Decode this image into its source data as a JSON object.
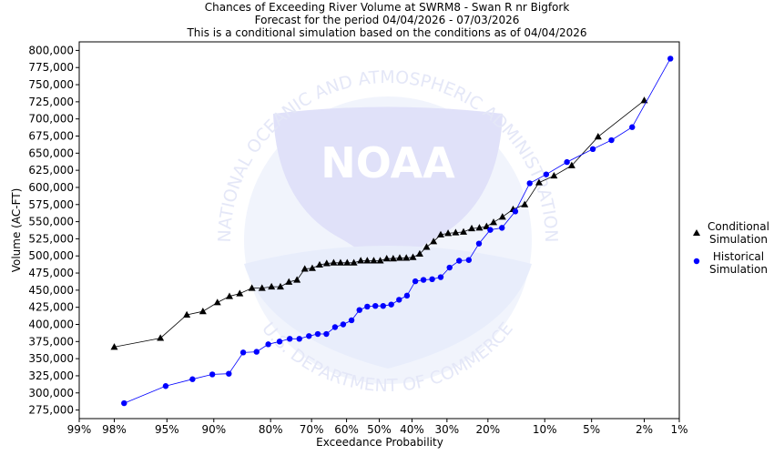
{
  "chart_data": {
    "type": "line",
    "title_lines": [
      "Chances of Exceeding River Volume at SWRM8 - Swan R nr Bigfork",
      "Forecast for the period 04/04/2026 - 07/03/2026",
      "This is a conditional simulation based on the conditions as of 04/04/2026"
    ],
    "xlabel": "Exceedance Probability",
    "ylabel": "Volume (AC-FT)",
    "x_scale": "normal-probability",
    "x_reversed": true,
    "xlim": [
      0.99,
      0.01
    ],
    "ylim": [
      262500,
      812500
    ],
    "x_ticks": [
      {
        "value": 0.99,
        "label": "99%"
      },
      {
        "value": 0.98,
        "label": "98%"
      },
      {
        "value": 0.95,
        "label": "95%"
      },
      {
        "value": 0.9,
        "label": "90%"
      },
      {
        "value": 0.8,
        "label": "80%"
      },
      {
        "value": 0.7,
        "label": "70%"
      },
      {
        "value": 0.6,
        "label": "60%"
      },
      {
        "value": 0.5,
        "label": "50%"
      },
      {
        "value": 0.4,
        "label": "40%"
      },
      {
        "value": 0.3,
        "label": "30%"
      },
      {
        "value": 0.2,
        "label": "20%"
      },
      {
        "value": 0.1,
        "label": "10%"
      },
      {
        "value": 0.05,
        "label": "5%"
      },
      {
        "value": 0.02,
        "label": "2%"
      },
      {
        "value": 0.01,
        "label": "1%"
      }
    ],
    "y_ticks": [
      {
        "value": 800000,
        "label": "800,000"
      },
      {
        "value": 775000,
        "label": "775,000"
      },
      {
        "value": 750000,
        "label": "750,000"
      },
      {
        "value": 725000,
        "label": "725,000"
      },
      {
        "value": 700000,
        "label": "700,000"
      },
      {
        "value": 675000,
        "label": "675,000"
      },
      {
        "value": 650000,
        "label": "650,000"
      },
      {
        "value": 625000,
        "label": "625,000"
      },
      {
        "value": 600000,
        "label": "600,000"
      },
      {
        "value": 575000,
        "label": "575,000"
      },
      {
        "value": 550000,
        "label": "550,000"
      },
      {
        "value": 525000,
        "label": "525,000"
      },
      {
        "value": 500000,
        "label": "500,000"
      },
      {
        "value": 475000,
        "label": "475,000"
      },
      {
        "value": 450000,
        "label": "450,000"
      },
      {
        "value": 425000,
        "label": "425,000"
      },
      {
        "value": 400000,
        "label": "400,000"
      },
      {
        "value": 375000,
        "label": "375,000"
      },
      {
        "value": 350000,
        "label": "350,000"
      },
      {
        "value": 325000,
        "label": "325,000"
      },
      {
        "value": 300000,
        "label": "300,000"
      },
      {
        "value": 275000,
        "label": "275,000"
      }
    ],
    "grid": false,
    "legend_position": "right",
    "series": [
      {
        "name": "Conditional Simulation",
        "legend_lines": [
          "Conditional",
          "Simulation"
        ],
        "marker": "triangle",
        "color": "#000000",
        "points": [
          [
            0.98,
            367000
          ],
          [
            0.955,
            380000
          ],
          [
            0.932,
            414000
          ],
          [
            0.914,
            419000
          ],
          [
            0.895,
            432000
          ],
          [
            0.877,
            441000
          ],
          [
            0.86,
            445000
          ],
          [
            0.838,
            453000
          ],
          [
            0.818,
            453000
          ],
          [
            0.798,
            455000
          ],
          [
            0.778,
            455000
          ],
          [
            0.758,
            462000
          ],
          [
            0.738,
            465000
          ],
          [
            0.718,
            481000
          ],
          [
            0.698,
            482000
          ],
          [
            0.678,
            487000
          ],
          [
            0.658,
            489000
          ],
          [
            0.638,
            490000
          ],
          [
            0.618,
            490000
          ],
          [
            0.598,
            490000
          ],
          [
            0.578,
            490000
          ],
          [
            0.557,
            493000
          ],
          [
            0.537,
            493000
          ],
          [
            0.517,
            493000
          ],
          [
            0.497,
            493000
          ],
          [
            0.477,
            496000
          ],
          [
            0.457,
            496000
          ],
          [
            0.437,
            497000
          ],
          [
            0.417,
            497000
          ],
          [
            0.397,
            498000
          ],
          [
            0.377,
            503000
          ],
          [
            0.357,
            513000
          ],
          [
            0.337,
            521000
          ],
          [
            0.317,
            531000
          ],
          [
            0.297,
            533000
          ],
          [
            0.277,
            534000
          ],
          [
            0.257,
            535000
          ],
          [
            0.237,
            540000
          ],
          [
            0.219,
            541000
          ],
          [
            0.203,
            543000
          ],
          [
            0.188,
            549000
          ],
          [
            0.17,
            557000
          ],
          [
            0.15,
            568000
          ],
          [
            0.13,
            575000
          ],
          [
            0.108,
            607000
          ],
          [
            0.088,
            617000
          ],
          [
            0.068,
            632000
          ],
          [
            0.045,
            674000
          ],
          [
            0.02,
            727000
          ]
        ]
      },
      {
        "name": "Historical Simulation",
        "legend_lines": [
          "Historical",
          "Simulation"
        ],
        "marker": "circle",
        "color": "#0000ff",
        "points": [
          [
            0.976,
            285000
          ],
          [
            0.951,
            310000
          ],
          [
            0.926,
            320000
          ],
          [
            0.902,
            327000
          ],
          [
            0.878,
            328000
          ],
          [
            0.854,
            359000
          ],
          [
            0.829,
            360000
          ],
          [
            0.805,
            371000
          ],
          [
            0.78,
            375000
          ],
          [
            0.756,
            379000
          ],
          [
            0.732,
            379000
          ],
          [
            0.707,
            383000
          ],
          [
            0.683,
            386000
          ],
          [
            0.659,
            386000
          ],
          [
            0.634,
            396000
          ],
          [
            0.61,
            400000
          ],
          [
            0.585,
            406000
          ],
          [
            0.561,
            421000
          ],
          [
            0.537,
            426000
          ],
          [
            0.512,
            427000
          ],
          [
            0.488,
            427000
          ],
          [
            0.463,
            429000
          ],
          [
            0.439,
            436000
          ],
          [
            0.415,
            442000
          ],
          [
            0.39,
            463000
          ],
          [
            0.366,
            465000
          ],
          [
            0.341,
            466000
          ],
          [
            0.317,
            469000
          ],
          [
            0.293,
            483000
          ],
          [
            0.268,
            493000
          ],
          [
            0.244,
            494000
          ],
          [
            0.22,
            518000
          ],
          [
            0.195,
            538000
          ],
          [
            0.171,
            541000
          ],
          [
            0.146,
            565000
          ],
          [
            0.122,
            606000
          ],
          [
            0.098,
            619000
          ],
          [
            0.073,
            637000
          ],
          [
            0.049,
            656000
          ],
          [
            0.036,
            669000
          ],
          [
            0.025,
            688000
          ],
          [
            0.012,
            788000
          ]
        ]
      }
    ]
  },
  "watermark": {
    "center_text": "NOAA",
    "ring_text_top": "NATIONAL OCEANIC AND ATMOSPHERIC ADMINISTRATION",
    "ring_text_bottom": "U.S. DEPARTMENT OF COMMERCE"
  }
}
